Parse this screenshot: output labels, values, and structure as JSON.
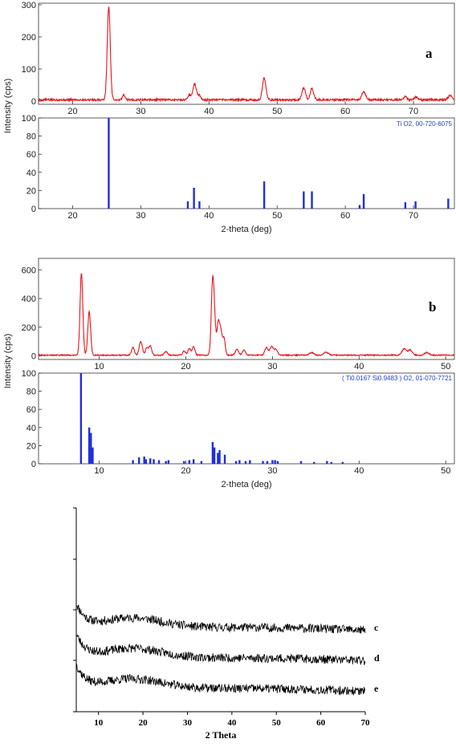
{
  "colors": {
    "pattern": "#e8141b",
    "reference": "#1f2ee0",
    "amorphous": "#000000",
    "reference_text": "#1f3fc4"
  },
  "chart_data": [
    {
      "id": "a-pattern",
      "type": "line",
      "panel_letter": "a",
      "ylabel": "Intensity (cps)",
      "xlim": [
        15,
        76
      ],
      "ylim": [
        -10,
        305
      ],
      "x_ticks": [
        20,
        30,
        40,
        50,
        60,
        70
      ],
      "y_ticks": [
        0,
        100,
        200,
        300
      ],
      "baseline": 4,
      "peaks": [
        {
          "x": 25.3,
          "y": 290,
          "w": 0.22
        },
        {
          "x": 27.5,
          "y": 14,
          "w": 0.2
        },
        {
          "x": 37.1,
          "y": 15,
          "w": 0.22
        },
        {
          "x": 37.9,
          "y": 50,
          "w": 0.25
        },
        {
          "x": 38.6,
          "y": 14,
          "w": 0.22
        },
        {
          "x": 48.1,
          "y": 68,
          "w": 0.25
        },
        {
          "x": 53.9,
          "y": 38,
          "w": 0.25
        },
        {
          "x": 55.1,
          "y": 35,
          "w": 0.25
        },
        {
          "x": 62.7,
          "y": 24,
          "w": 0.28
        },
        {
          "x": 68.8,
          "y": 9,
          "w": 0.25
        },
        {
          "x": 70.4,
          "y": 9,
          "w": 0.25
        },
        {
          "x": 75.4,
          "y": 14,
          "w": 0.3
        }
      ]
    },
    {
      "id": "a-reference",
      "type": "bar",
      "ylabel": "Intensity (cps)",
      "xlabel": "2-theta (deg)",
      "reference_label": "Ti O2, 00-720-6075",
      "xlim": [
        15,
        76
      ],
      "ylim": [
        0,
        100
      ],
      "x_ticks": [
        20,
        30,
        40,
        50,
        60,
        70
      ],
      "y_ticks": [
        0,
        20,
        40,
        60,
        80,
        100
      ],
      "sticks": [
        {
          "x": 25.3,
          "y": 100
        },
        {
          "x": 36.9,
          "y": 8
        },
        {
          "x": 37.8,
          "y": 23
        },
        {
          "x": 38.6,
          "y": 8
        },
        {
          "x": 48.1,
          "y": 30
        },
        {
          "x": 53.9,
          "y": 19
        },
        {
          "x": 55.1,
          "y": 19
        },
        {
          "x": 62.1,
          "y": 4
        },
        {
          "x": 62.7,
          "y": 16
        },
        {
          "x": 68.8,
          "y": 7
        },
        {
          "x": 70.3,
          "y": 8
        },
        {
          "x": 75.1,
          "y": 11
        }
      ]
    },
    {
      "id": "b-pattern",
      "type": "line",
      "panel_letter": "b",
      "xlim": [
        3,
        51
      ],
      "ylim": [
        -25,
        680
      ],
      "x_ticks": [
        10,
        20,
        30,
        40,
        50
      ],
      "y_ticks": [
        0,
        200,
        400,
        600
      ],
      "baseline": 5,
      "peaks": [
        {
          "x": 7.95,
          "y": 570,
          "w": 0.16
        },
        {
          "x": 8.85,
          "y": 305,
          "w": 0.16
        },
        {
          "x": 13.9,
          "y": 55,
          "w": 0.16
        },
        {
          "x": 14.8,
          "y": 95,
          "w": 0.18
        },
        {
          "x": 15.5,
          "y": 50,
          "w": 0.16
        },
        {
          "x": 15.9,
          "y": 65,
          "w": 0.16
        },
        {
          "x": 17.7,
          "y": 25,
          "w": 0.18
        },
        {
          "x": 19.8,
          "y": 30,
          "w": 0.16
        },
        {
          "x": 20.4,
          "y": 45,
          "w": 0.16
        },
        {
          "x": 20.9,
          "y": 60,
          "w": 0.16
        },
        {
          "x": 23.1,
          "y": 520,
          "w": 0.16
        },
        {
          "x": 23.35,
          "y": 150,
          "w": 0.14
        },
        {
          "x": 23.75,
          "y": 230,
          "w": 0.15
        },
        {
          "x": 24.05,
          "y": 150,
          "w": 0.14
        },
        {
          "x": 24.4,
          "y": 120,
          "w": 0.15
        },
        {
          "x": 25.9,
          "y": 40,
          "w": 0.18
        },
        {
          "x": 26.7,
          "y": 35,
          "w": 0.18
        },
        {
          "x": 29.3,
          "y": 55,
          "w": 0.18
        },
        {
          "x": 29.9,
          "y": 60,
          "w": 0.2
        },
        {
          "x": 30.4,
          "y": 40,
          "w": 0.18
        },
        {
          "x": 34.5,
          "y": 18,
          "w": 0.25
        },
        {
          "x": 36.2,
          "y": 20,
          "w": 0.25
        },
        {
          "x": 45.2,
          "y": 45,
          "w": 0.25
        },
        {
          "x": 45.9,
          "y": 35,
          "w": 0.25
        },
        {
          "x": 47.8,
          "y": 18,
          "w": 0.25
        }
      ]
    },
    {
      "id": "b-reference",
      "type": "bar",
      "ylabel": "Intensity (cps)",
      "xlabel": "2-theta (deg)",
      "reference_label": "( Ti0.0167 Si0.9483 ) O2, 01-070-7721",
      "xlim": [
        3,
        51
      ],
      "ylim": [
        0,
        100
      ],
      "x_ticks": [
        10,
        20,
        30,
        40,
        50
      ],
      "y_ticks": [
        0,
        20,
        40,
        60,
        80,
        100
      ],
      "sticks": [
        {
          "x": 7.9,
          "y": 100
        },
        {
          "x": 8.85,
          "y": 40
        },
        {
          "x": 9.05,
          "y": 34
        },
        {
          "x": 9.25,
          "y": 18
        },
        {
          "x": 13.9,
          "y": 4
        },
        {
          "x": 14.6,
          "y": 7
        },
        {
          "x": 15.2,
          "y": 8
        },
        {
          "x": 15.4,
          "y": 5
        },
        {
          "x": 15.9,
          "y": 6
        },
        {
          "x": 16.3,
          "y": 5
        },
        {
          "x": 16.9,
          "y": 4
        },
        {
          "x": 17.7,
          "y": 3
        },
        {
          "x": 18.0,
          "y": 4
        },
        {
          "x": 19.8,
          "y": 3
        },
        {
          "x": 20.4,
          "y": 4
        },
        {
          "x": 20.9,
          "y": 5
        },
        {
          "x": 21.8,
          "y": 3
        },
        {
          "x": 23.1,
          "y": 24
        },
        {
          "x": 23.3,
          "y": 18
        },
        {
          "x": 23.7,
          "y": 12
        },
        {
          "x": 23.9,
          "y": 15
        },
        {
          "x": 24.5,
          "y": 10
        },
        {
          "x": 25.8,
          "y": 3
        },
        {
          "x": 26.2,
          "y": 4
        },
        {
          "x": 26.9,
          "y": 3
        },
        {
          "x": 27.4,
          "y": 4
        },
        {
          "x": 28.9,
          "y": 3
        },
        {
          "x": 29.4,
          "y": 3
        },
        {
          "x": 30.0,
          "y": 4
        },
        {
          "x": 30.3,
          "y": 4
        },
        {
          "x": 30.6,
          "y": 3
        },
        {
          "x": 33.3,
          "y": 3
        },
        {
          "x": 34.8,
          "y": 2
        },
        {
          "x": 36.3,
          "y": 3
        },
        {
          "x": 36.8,
          "y": 2
        },
        {
          "x": 38.1,
          "y": 2
        }
      ]
    },
    {
      "id": "cde",
      "type": "line",
      "xlabel": "2 Theta",
      "xlim": [
        5,
        70
      ],
      "x_ticks": [
        10,
        20,
        30,
        40,
        50,
        60,
        70
      ],
      "series": [
        {
          "name": "c",
          "offset": 2.0,
          "noise_seed": 11
        },
        {
          "name": "d",
          "offset": 1.0,
          "noise_seed": 23
        },
        {
          "name": "e",
          "offset": 0.0,
          "noise_seed": 37
        }
      ]
    }
  ]
}
